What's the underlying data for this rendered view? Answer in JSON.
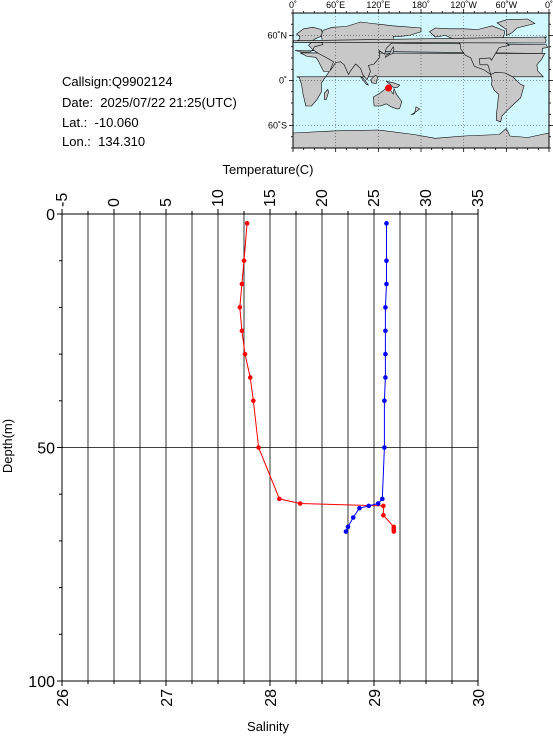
{
  "info": {
    "callsign": "Callsign:Q9902124",
    "date": "Date:  2025/07/22 21:25(UTC)",
    "lat": "Lat.:  -10.060",
    "lon": "Lon.:  134.310"
  },
  "map": {
    "lon_labels": [
      "0˚",
      "60˚E",
      "120˚E",
      "180˚",
      "120˚W",
      "60˚W",
      "0˚"
    ],
    "lat_labels": [
      "60˚N",
      "0˚",
      "60˚S"
    ],
    "ocean_color": "#d2f8ff",
    "land_color": "#c8c8c8",
    "marker_color": "#ff0000",
    "marker": {
      "lon": 134.31,
      "lat": -10.06
    }
  },
  "chart_data": {
    "type": "line",
    "top_axis": {
      "label": "Temperature(C)",
      "range": [
        -5,
        35
      ],
      "ticks": [
        "-5",
        "0",
        "5",
        "10",
        "15",
        "20",
        "25",
        "30",
        "35"
      ]
    },
    "bottom_axis": {
      "label": "Salinity",
      "range": [
        26,
        30
      ],
      "ticks": [
        "26",
        "27",
        "28",
        "29",
        "30"
      ]
    },
    "left_axis": {
      "label": "Depth(m)",
      "range": [
        0,
        100
      ],
      "inverted": true,
      "ticks": [
        "0",
        "50",
        "100"
      ]
    },
    "grid": {
      "vertical_every_temperature": 2.5,
      "horizontal_depths": [
        50
      ]
    },
    "series": [
      {
        "axis": "top",
        "color": "#ff0000",
        "points": [
          {
            "x": 12.8,
            "depth": 2
          },
          {
            "x": 12.5,
            "depth": 10
          },
          {
            "x": 12.3,
            "depth": 15
          },
          {
            "x": 12.1,
            "depth": 20
          },
          {
            "x": 12.3,
            "depth": 25
          },
          {
            "x": 12.6,
            "depth": 30
          },
          {
            "x": 13.1,
            "depth": 35
          },
          {
            "x": 13.4,
            "depth": 40
          },
          {
            "x": 13.9,
            "depth": 50
          },
          {
            "x": 15.9,
            "depth": 61
          },
          {
            "x": 17.9,
            "depth": 62
          },
          {
            "x": 25.9,
            "depth": 62.5
          },
          {
            "x": 25.9,
            "depth": 64.5
          },
          {
            "x": 26.9,
            "depth": 67
          },
          {
            "x": 26.9,
            "depth": 67.5
          },
          {
            "x": 26.9,
            "depth": 68
          }
        ]
      },
      {
        "axis": "bottom",
        "color": "#0000ff",
        "points": [
          {
            "x": 29.12,
            "depth": 2
          },
          {
            "x": 29.12,
            "depth": 10
          },
          {
            "x": 29.12,
            "depth": 15
          },
          {
            "x": 29.11,
            "depth": 20
          },
          {
            "x": 29.11,
            "depth": 25
          },
          {
            "x": 29.11,
            "depth": 30
          },
          {
            "x": 29.11,
            "depth": 35
          },
          {
            "x": 29.1,
            "depth": 40
          },
          {
            "x": 29.1,
            "depth": 50
          },
          {
            "x": 29.08,
            "depth": 61
          },
          {
            "x": 29.04,
            "depth": 62
          },
          {
            "x": 28.95,
            "depth": 62.5
          },
          {
            "x": 28.86,
            "depth": 63
          },
          {
            "x": 28.8,
            "depth": 65
          },
          {
            "x": 28.75,
            "depth": 67
          },
          {
            "x": 28.73,
            "depth": 68
          }
        ]
      }
    ]
  }
}
